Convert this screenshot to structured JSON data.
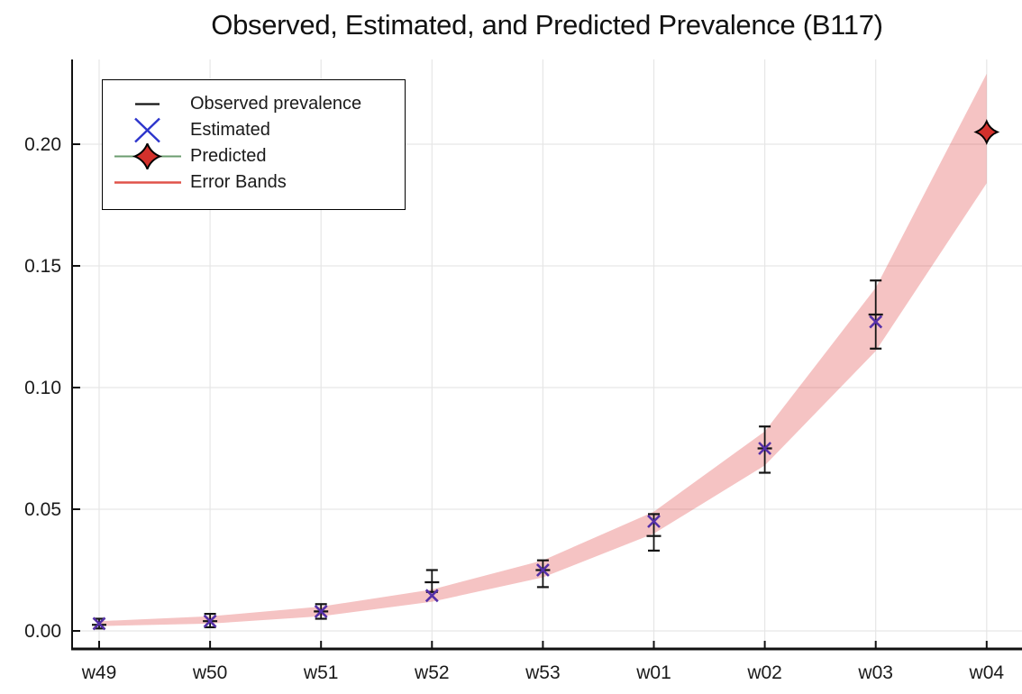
{
  "page": {
    "background": "#ffffff"
  },
  "chart_data": {
    "type": "scatter",
    "title": "Observed, Estimated, and Predicted Prevalence (B117)",
    "categories": [
      "w49",
      "w50",
      "w51",
      "w52",
      "w53",
      "w01",
      "w02",
      "w03",
      "w04"
    ],
    "xlabel": "",
    "ylabel": "",
    "ylim": [
      -0.009,
      0.235
    ],
    "yticks": [
      "0.00",
      "0.05",
      "0.10",
      "0.15",
      "0.20"
    ],
    "ytick_values": [
      0.0,
      0.05,
      0.1,
      0.15,
      0.2
    ],
    "grid": true,
    "grid_color": "#e6e6e6",
    "axis_color": "#111111",
    "legend_position": "top-left",
    "series": [
      {
        "name": "Observed prevalence",
        "type": "errorbar",
        "color": "#141414",
        "values": [
          0.0025,
          0.004,
          0.008,
          0.02,
          0.025,
          0.039,
          0.075,
          0.13,
          null
        ],
        "err_low": [
          0.001,
          0.0015,
          0.005,
          0.016,
          0.018,
          0.033,
          0.065,
          0.116,
          null
        ],
        "err_high": [
          0.005,
          0.007,
          0.011,
          0.025,
          0.029,
          0.048,
          0.084,
          0.144,
          null
        ]
      },
      {
        "name": "Estimated",
        "type": "x_marker",
        "marker_color": "#5530a8",
        "legend_color": "#2d35cc",
        "values": [
          0.003,
          0.004,
          0.008,
          0.0145,
          0.025,
          0.045,
          0.075,
          0.127,
          null
        ]
      },
      {
        "name": "Predicted",
        "type": "star_marker",
        "fill_color": "#d3312c",
        "stroke_color": "#000000",
        "legend_line_color": "#6b9c6f",
        "values": [
          null,
          null,
          null,
          null,
          null,
          null,
          null,
          null,
          0.205
        ]
      },
      {
        "name": "Error Bands",
        "type": "band",
        "line_color": "#e0534a",
        "fill_color": "rgba(226,74,74,0.33)",
        "lower": [
          0.002,
          0.003,
          0.006,
          0.012,
          0.022,
          0.04,
          0.068,
          0.115,
          0.184
        ],
        "upper": [
          0.004,
          0.006,
          0.01,
          0.017,
          0.029,
          0.049,
          0.082,
          0.141,
          0.229
        ]
      }
    ]
  }
}
